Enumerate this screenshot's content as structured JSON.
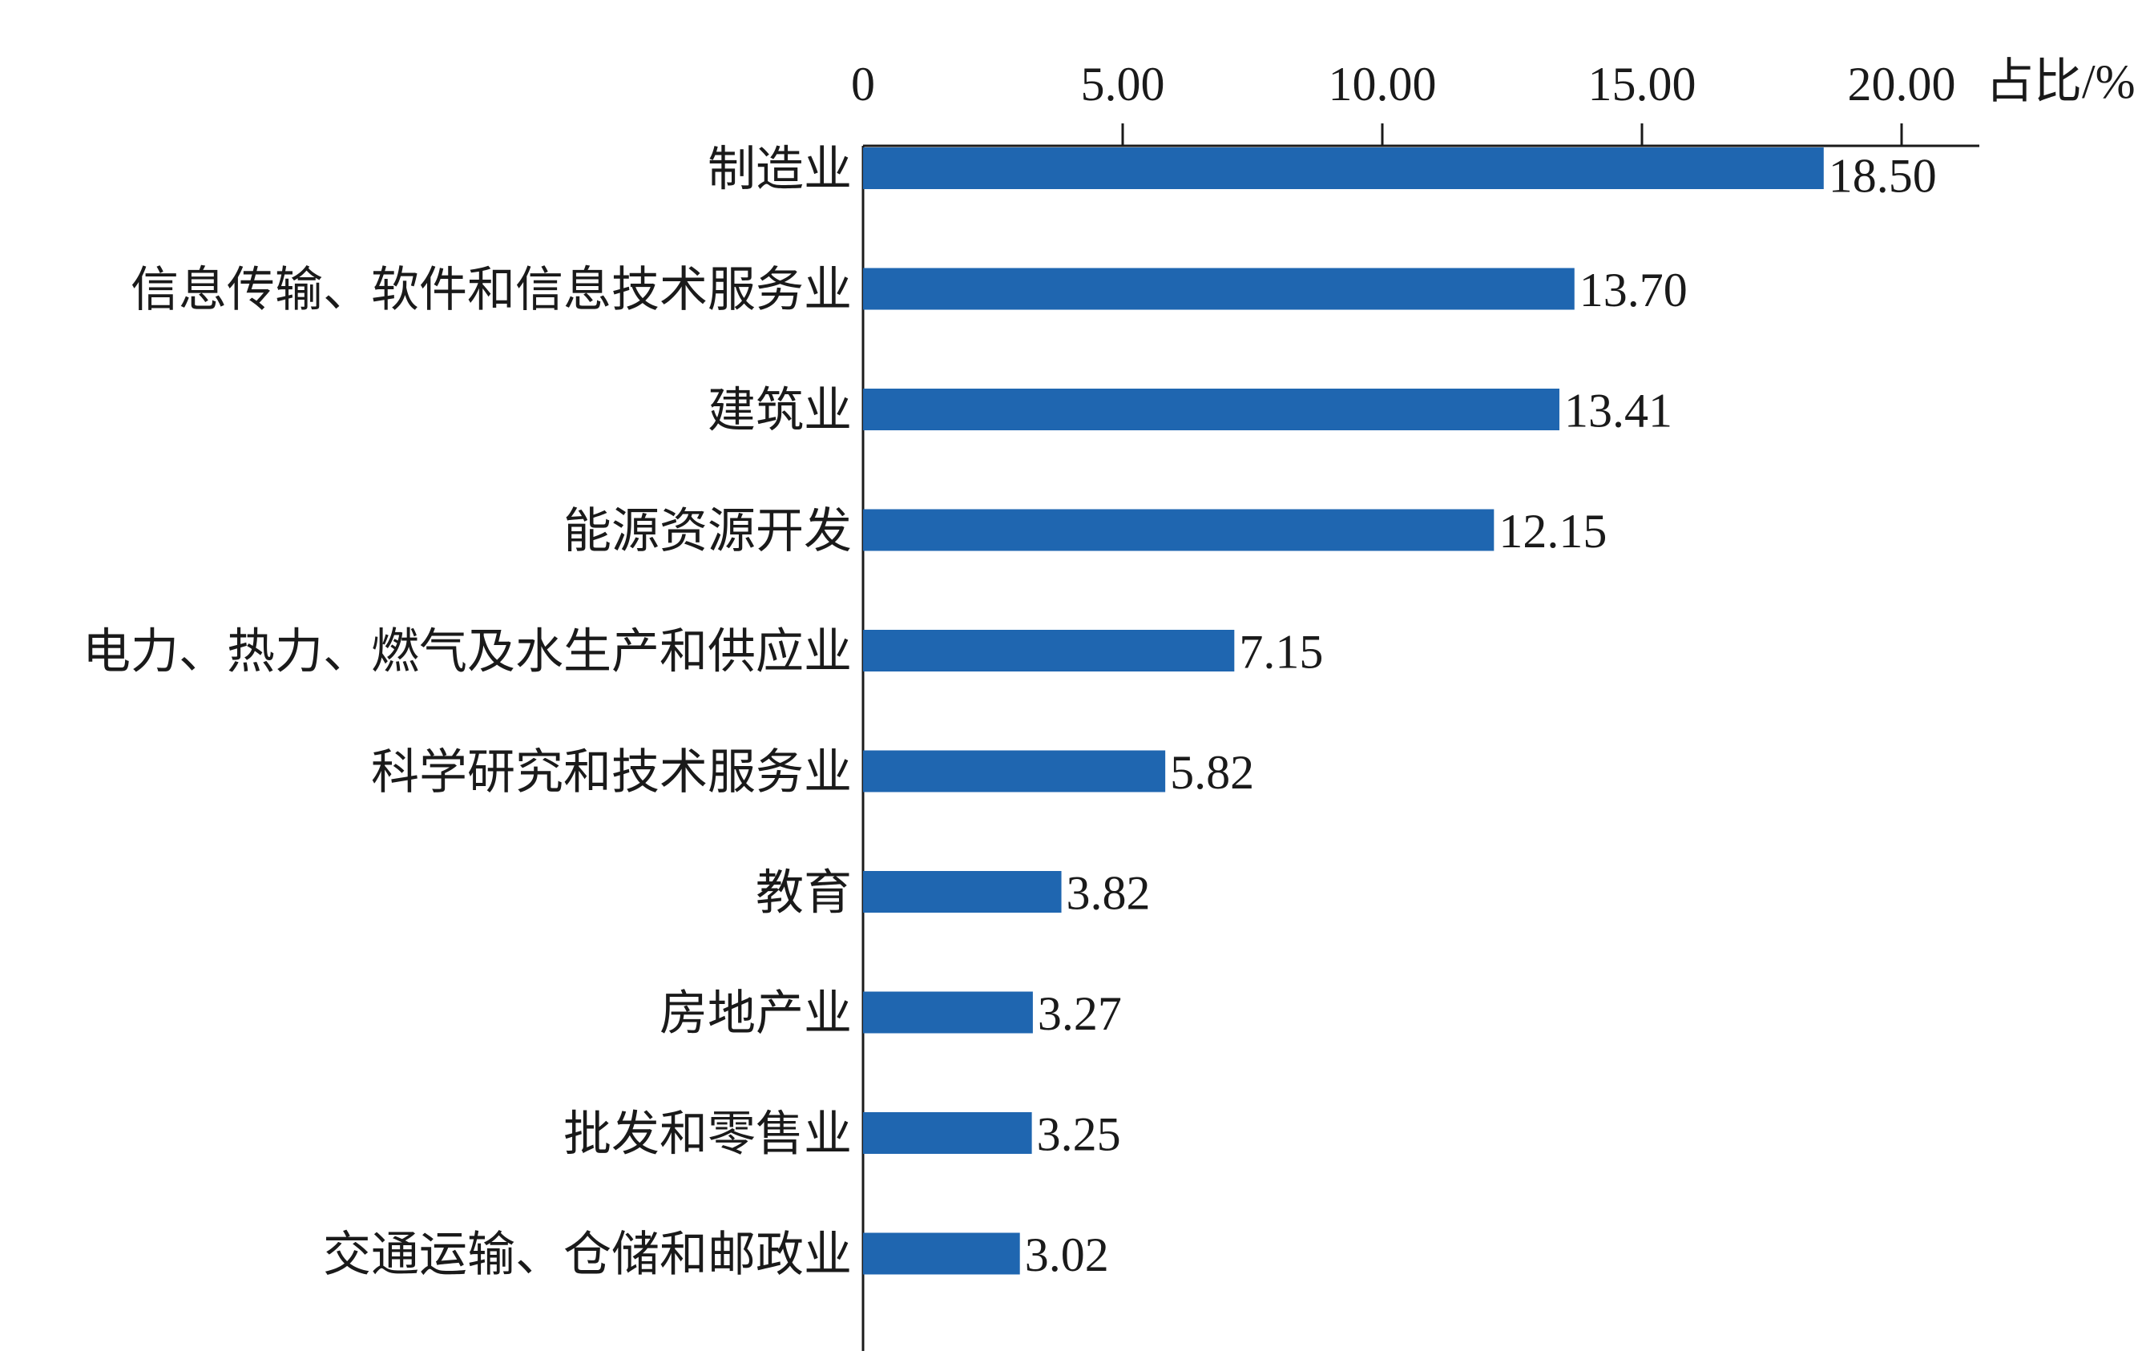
{
  "chart_data": {
    "type": "bar",
    "orientation": "horizontal",
    "xlabel": "占比/%",
    "ylabel": "",
    "xlim": [
      0,
      22
    ],
    "ticks": [
      0,
      5,
      10,
      15,
      20
    ],
    "tick_labels": [
      "0",
      "5.00",
      "10.00",
      "15.00",
      "20.00"
    ],
    "categories": [
      "制造业",
      "信息传输、软件和信息技术服务业",
      "建筑业",
      "能源资源开发",
      "电力、热力、燃气及水生产和供应业",
      "科学研究和技术服务业",
      "教育",
      "房地产业",
      "批发和零售业",
      "交通运输、仓储和邮政业"
    ],
    "values": [
      18.5,
      13.7,
      13.41,
      12.15,
      7.15,
      5.82,
      3.82,
      3.27,
      3.25,
      3.02
    ],
    "value_labels": [
      "18.50",
      "13.70",
      "13.41",
      "12.15",
      "7.15",
      "5.82",
      "3.82",
      "3.27",
      "3.25",
      "3.02"
    ],
    "bar_color": "#1f66b0",
    "axis_position": "top",
    "grid": false,
    "legend": "none"
  }
}
